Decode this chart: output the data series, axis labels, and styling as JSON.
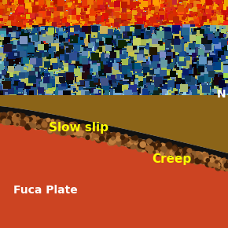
{
  "fig_width": 2.9,
  "fig_height": 2.9,
  "dpi": 100,
  "north_america_label": "N",
  "north_america_label_color": "#ffffff",
  "north_america_label_fontsize": 10,
  "slow_slip_label": "Slow slip",
  "slow_slip_color": "#ffff00",
  "slow_slip_fontsize": 11,
  "creep_label": "Creep",
  "creep_color": "#ffff00",
  "creep_fontsize": 11,
  "fuca_label": "Fuca Plate",
  "fuca_color": "#ffffff",
  "fuca_fontsize": 10,
  "upper_plate_fill": "#8B6418",
  "lower_plate_fill": "#CC4422",
  "black_band_fill": "#111111",
  "tex_band_fill": "#6B3A10",
  "background_color": "#ffffff"
}
